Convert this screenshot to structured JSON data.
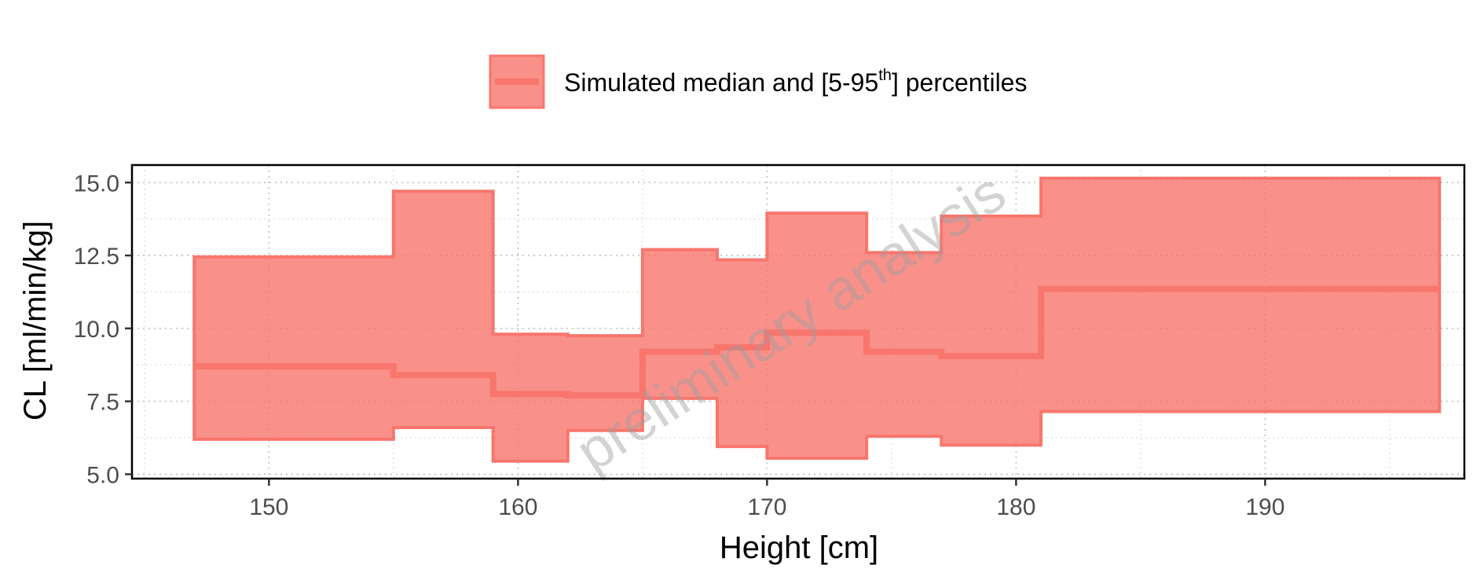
{
  "chart_data": {
    "type": "area",
    "xlabel": "Height [cm]",
    "ylabel": "CL [ml/min/kg]",
    "xlim": [
      144.5,
      198
    ],
    "ylim": [
      4.85,
      15.6
    ],
    "x_ticks": [
      150,
      160,
      170,
      180,
      190
    ],
    "y_ticks": [
      5.0,
      7.5,
      10.0,
      12.5,
      15.0
    ],
    "x_tick_labels": [
      "150",
      "160",
      "170",
      "180",
      "190"
    ],
    "y_tick_labels": [
      "5.0",
      "7.5",
      "10.0",
      "12.5",
      "15.0"
    ],
    "grid": true,
    "legend": {
      "placement": "top",
      "label_main": "Simulated median and [5-95",
      "label_sup": "th",
      "label_end": "] percentiles"
    },
    "watermark": "preliminary analysis",
    "colors": {
      "band_fill": "#f8766d",
      "band_stroke": "#f8766d",
      "median_line": "#f8766d"
    },
    "bins": [
      {
        "x_start": 147,
        "x_end": 155,
        "p5": 6.2,
        "median": 8.7,
        "p95": 12.45
      },
      {
        "x_start": 155,
        "x_end": 159,
        "p5": 6.6,
        "median": 8.4,
        "p95": 14.7
      },
      {
        "x_start": 159,
        "x_end": 162,
        "p5": 5.45,
        "median": 7.75,
        "p95": 9.8
      },
      {
        "x_start": 162,
        "x_end": 165,
        "p5": 6.5,
        "median": 7.7,
        "p95": 9.75
      },
      {
        "x_start": 165,
        "x_end": 168,
        "p5": 7.6,
        "median": 9.2,
        "p95": 12.7
      },
      {
        "x_start": 168,
        "x_end": 170,
        "p5": 5.95,
        "median": 9.35,
        "p95": 12.35
      },
      {
        "x_start": 170,
        "x_end": 174,
        "p5": 5.55,
        "median": 9.85,
        "p95": 13.95
      },
      {
        "x_start": 174,
        "x_end": 177,
        "p5": 6.3,
        "median": 9.2,
        "p95": 12.6
      },
      {
        "x_start": 177,
        "x_end": 181,
        "p5": 6.0,
        "median": 9.05,
        "p95": 13.85
      },
      {
        "x_start": 181,
        "x_end": 197,
        "p5": 7.15,
        "median": 11.35,
        "p95": 15.15
      }
    ]
  }
}
